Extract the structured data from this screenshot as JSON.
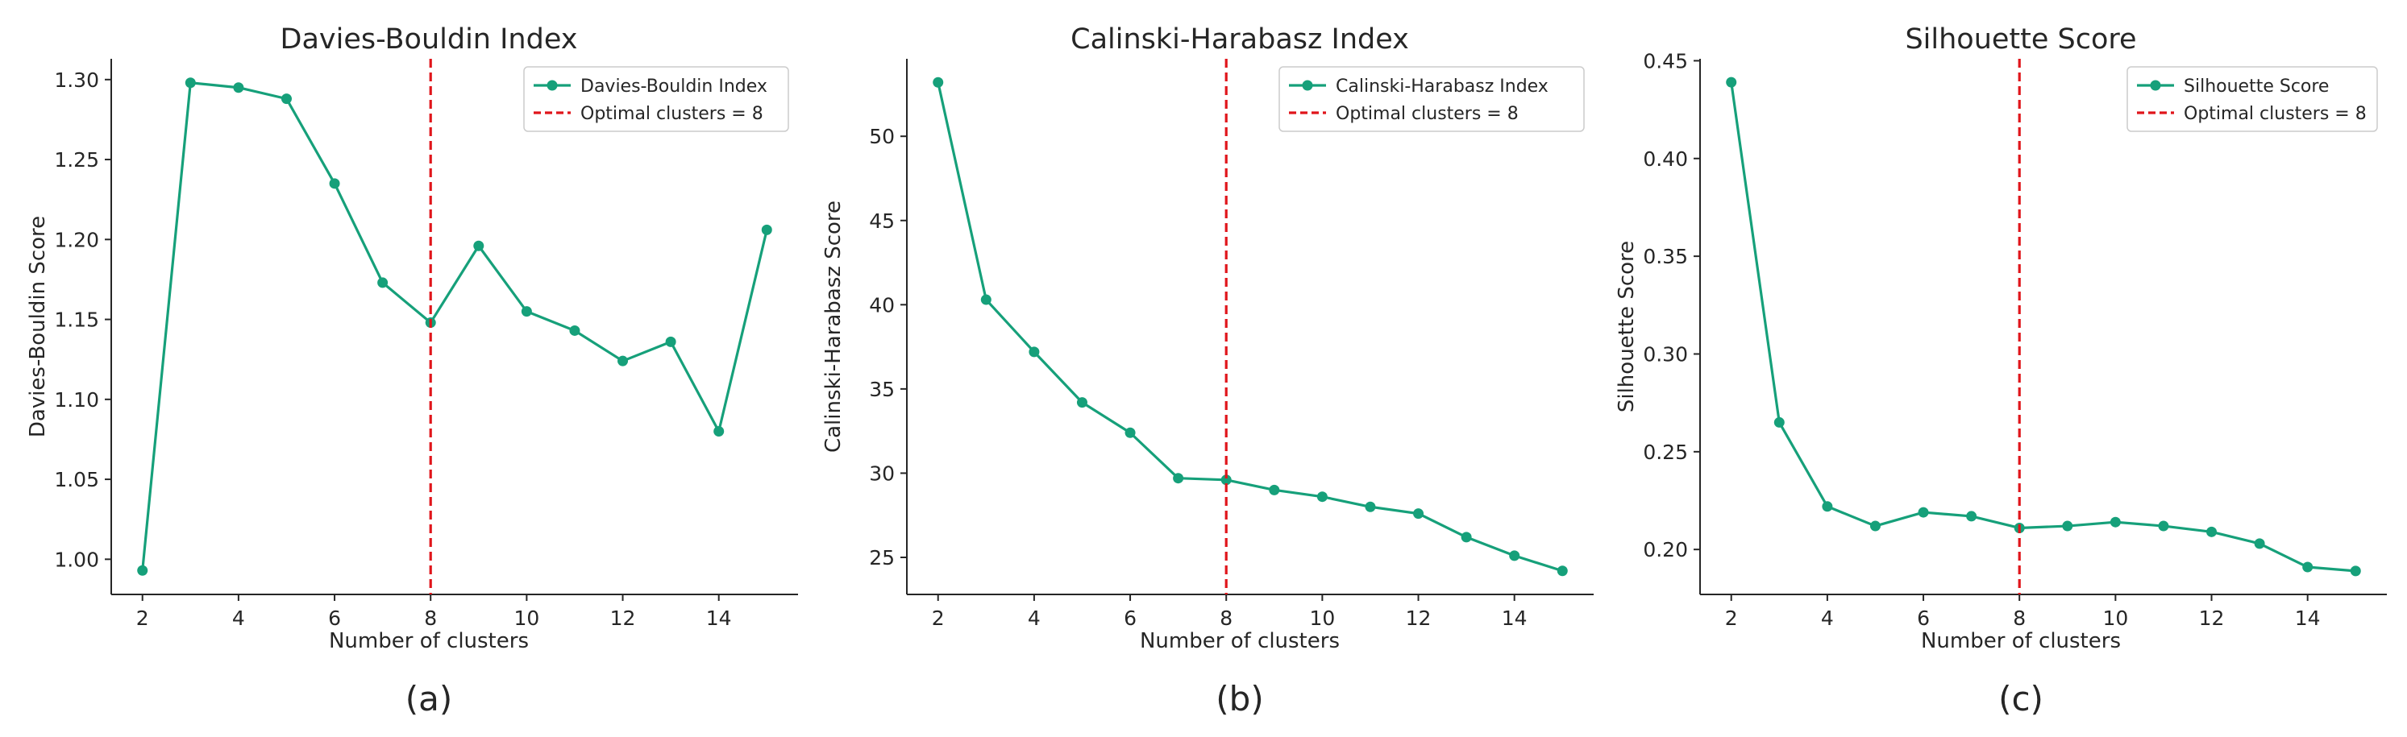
{
  "chart_data": [
    {
      "type": "line",
      "title": "Davies-Bouldin Index",
      "xlabel": "Number of clusters",
      "ylabel": "Davies-Bouldin Score",
      "caption": "(a)",
      "x": [
        2,
        3,
        4,
        5,
        6,
        7,
        8,
        9,
        10,
        11,
        12,
        13,
        14,
        15
      ],
      "series": [
        {
          "name": "Davies-Bouldin Index",
          "values": [
            0.993,
            1.298,
            1.295,
            1.288,
            1.235,
            1.173,
            1.148,
            1.196,
            1.155,
            1.143,
            1.124,
            1.136,
            1.08,
            1.206
          ]
        }
      ],
      "reference_line": {
        "x": 8,
        "label": "Optimal clusters = 8"
      },
      "xlim": [
        1.35,
        15.65
      ],
      "ylim": [
        0.978,
        1.313
      ],
      "xticks": [
        2,
        4,
        6,
        8,
        10,
        12,
        14
      ],
      "xtick_labels": [
        "2",
        "4",
        "6",
        "8",
        "10",
        "12",
        "14"
      ],
      "yticks": [
        1.0,
        1.05,
        1.1,
        1.15,
        1.2,
        1.25,
        1.3
      ],
      "ytick_labels": [
        "1.00",
        "1.05",
        "1.10",
        "1.15",
        "1.20",
        "1.25",
        "1.30"
      ],
      "legend_position": "top-right"
    },
    {
      "type": "line",
      "title": "Calinski-Harabasz Index",
      "xlabel": "Number of clusters",
      "ylabel": "Calinski-Harabasz Score",
      "caption": "(b)",
      "x": [
        2,
        3,
        4,
        5,
        6,
        7,
        8,
        9,
        10,
        11,
        12,
        13,
        14,
        15
      ],
      "series": [
        {
          "name": "Calinski-Harabasz Index",
          "values": [
            53.2,
            40.3,
            37.2,
            34.2,
            32.4,
            29.7,
            29.6,
            29.0,
            28.6,
            28.0,
            27.6,
            26.2,
            25.1,
            24.2
          ]
        }
      ],
      "reference_line": {
        "x": 8,
        "label": "Optimal clusters = 8"
      },
      "xlim": [
        1.35,
        15.65
      ],
      "ylim": [
        22.8,
        54.6
      ],
      "xticks": [
        2,
        4,
        6,
        8,
        10,
        12,
        14
      ],
      "xtick_labels": [
        "2",
        "4",
        "6",
        "8",
        "10",
        "12",
        "14"
      ],
      "yticks": [
        25,
        30,
        35,
        40,
        45,
        50
      ],
      "ytick_labels": [
        "25",
        "30",
        "35",
        "40",
        "45",
        "50"
      ],
      "legend_position": "top-right"
    },
    {
      "type": "line",
      "title": "Silhouette Score",
      "xlabel": "Number of clusters",
      "ylabel": "Silhouette Score",
      "caption": "(c)",
      "x": [
        2,
        3,
        4,
        5,
        6,
        7,
        8,
        9,
        10,
        11,
        12,
        13,
        14,
        15
      ],
      "series": [
        {
          "name": "Silhouette Score",
          "values": [
            0.439,
            0.265,
            0.222,
            0.212,
            0.219,
            0.217,
            0.211,
            0.212,
            0.214,
            0.212,
            0.209,
            0.203,
            0.191,
            0.189
          ]
        }
      ],
      "reference_line": {
        "x": 8,
        "label": "Optimal clusters = 8"
      },
      "xlim": [
        1.35,
        15.65
      ],
      "ylim": [
        0.177,
        0.451
      ],
      "xticks": [
        2,
        4,
        6,
        8,
        10,
        12,
        14
      ],
      "xtick_labels": [
        "2",
        "4",
        "6",
        "8",
        "10",
        "12",
        "14"
      ],
      "yticks": [
        0.2,
        0.25,
        0.3,
        0.35,
        0.4,
        0.45
      ],
      "ytick_labels": [
        "0.20",
        "0.25",
        "0.30",
        "0.35",
        "0.40",
        "0.45"
      ],
      "legend_position": "top-right"
    }
  ],
  "colors": {
    "line": "#16a07a",
    "reference": "#e0151b",
    "axis": "#262626",
    "legend_border": "#cccccc"
  }
}
